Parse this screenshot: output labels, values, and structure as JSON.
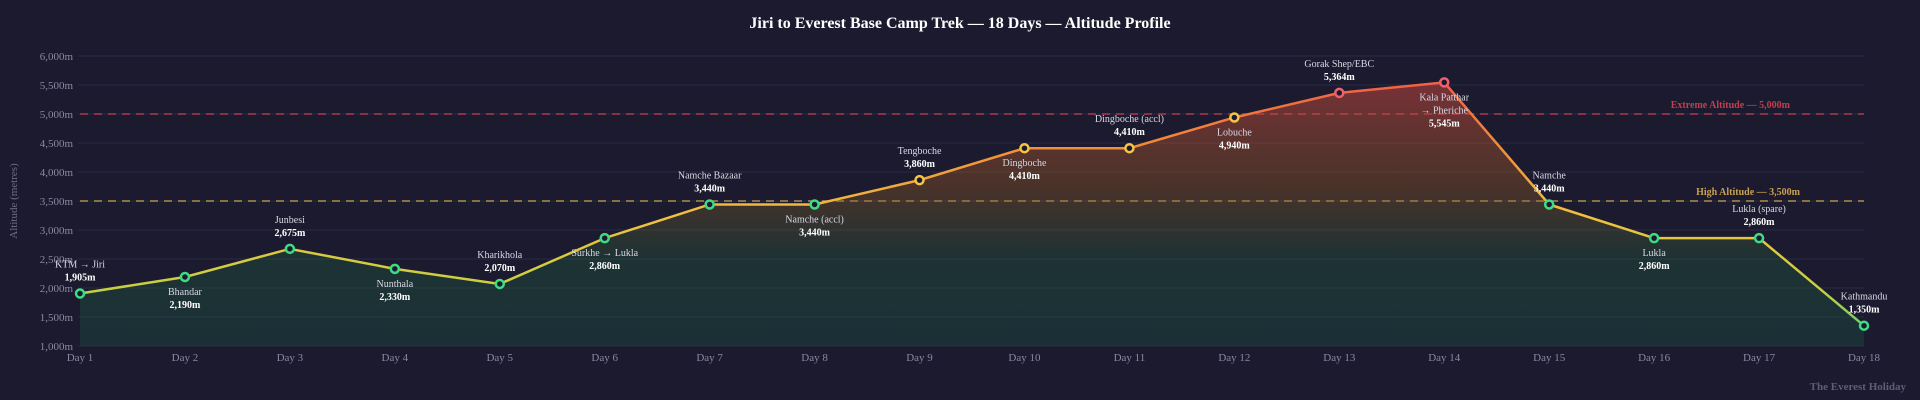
{
  "chart_data": {
    "type": "line",
    "title": "Jiri to Everest Base Camp Trek — 18 Days — Altitude Profile",
    "xlabel": "",
    "ylabel": "Altitude (metres)",
    "ylim": [
      1000,
      6000
    ],
    "yticks": [
      "1,000m",
      "1,500m",
      "2,000m",
      "2,500m",
      "3,000m",
      "3,500m",
      "4,000m",
      "4,500m",
      "5,000m",
      "5,500m",
      "6,000m"
    ],
    "grid": true,
    "categories": [
      "Day 1",
      "Day 2",
      "Day 3",
      "Day 4",
      "Day 5",
      "Day 6",
      "Day 7",
      "Day 8",
      "Day 9",
      "Day 10",
      "Day 11",
      "Day 12",
      "Day 13",
      "Day 14",
      "Day 15",
      "Day 16",
      "Day 17",
      "Day 18"
    ],
    "values": [
      1905,
      2190,
      2675,
      2330,
      2070,
      2860,
      3440,
      3440,
      3860,
      4410,
      4410,
      4940,
      5364,
      5545,
      3440,
      2860,
      2860,
      1350
    ],
    "point_labels": [
      "KTM → Jiri",
      "Bhandar",
      "Junbesi",
      "Nunthala",
      "Kharikhola",
      "Surkhe → Lukla",
      "Namche Bazaar",
      "Namche (accl)",
      "Tengboche",
      "Dingboche",
      "Dingboche (accl)",
      "Lobuche",
      "Gorak Shep/EBC",
      "Kala Patthar|→ Pheriche",
      "Namche",
      "Lukla",
      "Lukla (spare)",
      "Kathmandu"
    ],
    "value_labels": [
      "1,905m",
      "2,190m",
      "2,675m",
      "2,330m",
      "2,070m",
      "2,860m",
      "3,440m",
      "3,440m",
      "3,860m",
      "4,410m",
      "4,410m",
      "4,940m",
      "5,364m",
      "5,545m",
      "3,440m",
      "2,860m",
      "2,860m",
      "1,350m"
    ],
    "reference_lines": [
      {
        "label": "Extreme Altitude — 5,000m",
        "value": 5000,
        "color": "#c0404f"
      },
      {
        "label": "High Altitude — 3,500m",
        "value": 3500,
        "color": "#c8a050"
      }
    ],
    "point_colors": {
      "low": "#3ddc84",
      "high": "#f5c542",
      "extreme": "#f0606a"
    }
  },
  "footer": "The Everest Holiday"
}
